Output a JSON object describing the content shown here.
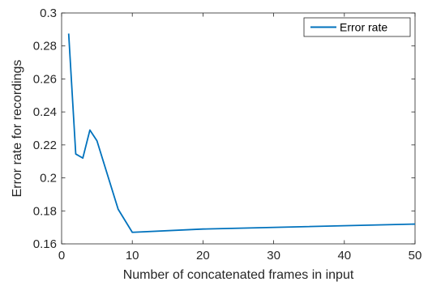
{
  "chart_data": {
    "type": "line",
    "xlabel": "Number of concatenated frames in input",
    "ylabel": "Error rate for recordings",
    "xlim": [
      0,
      50
    ],
    "ylim": [
      0.16,
      0.3
    ],
    "x_ticks": [
      0,
      10,
      20,
      30,
      40,
      50
    ],
    "x_tick_labels": [
      "0",
      "10",
      "20",
      "30",
      "40",
      "50"
    ],
    "y_ticks": [
      0.16,
      0.18,
      0.2,
      0.22,
      0.24,
      0.26,
      0.28,
      0.3
    ],
    "y_tick_labels": [
      "0.16",
      "0.18",
      "0.2",
      "0.22",
      "0.24",
      "0.26",
      "0.28",
      "0.3"
    ],
    "grid": false,
    "legend_position": "top-right",
    "series": [
      {
        "name": "Error rate",
        "color": "#0072BD",
        "x": [
          1,
          2,
          3,
          4,
          5,
          8,
          10,
          20,
          50
        ],
        "y": [
          0.2875,
          0.2145,
          0.212,
          0.229,
          0.2225,
          0.181,
          0.167,
          0.169,
          0.172
        ]
      }
    ]
  }
}
